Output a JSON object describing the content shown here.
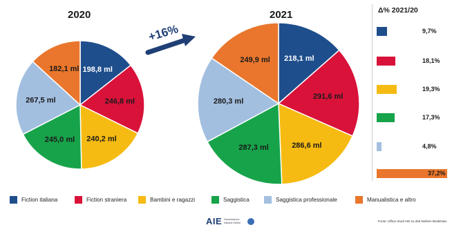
{
  "chart_data": [
    {
      "type": "pie",
      "title": "2020",
      "categories": [
        "Fiction italiana",
        "Fiction straniera",
        "Bambini e ragazzi",
        "Saggistica",
        "Saggistica professionale",
        "Manualistica e altro"
      ],
      "values": [
        198.8,
        246.8,
        240.2,
        245.0,
        267.5,
        182.1
      ],
      "labels": [
        "198,8 ml",
        "246,8 ml",
        "240,2 ml",
        "245,0 ml",
        "267,5 ml",
        "182,1 ml"
      ]
    },
    {
      "type": "pie",
      "title": "2021",
      "categories": [
        "Fiction italiana",
        "Fiction straniera",
        "Bambini e ragazzi",
        "Saggistica",
        "Saggistica professionale",
        "Manualistica e altro"
      ],
      "values": [
        218.1,
        291.6,
        286.6,
        287.3,
        280.3,
        249.9
      ],
      "labels": [
        "218,1 ml",
        "291,6 ml",
        "286,6 ml",
        "287,3 ml",
        "280,3 ml",
        "249,9 ml"
      ]
    },
    {
      "type": "bar",
      "title": "Δ% 2021/20",
      "categories": [
        "Fiction italiana",
        "Fiction straniera",
        "Bambini e ragazzi",
        "Saggistica",
        "Saggistica professionale",
        "Manualistica e altro"
      ],
      "values": [
        9.7,
        18.1,
        19.3,
        17.3,
        4.8,
        37.2
      ],
      "labels": [
        "9,7%",
        "18,1%",
        "19,3%",
        "17,3%",
        "4,8%",
        "37,2%"
      ]
    }
  ],
  "colors": [
    "#1f4e8c",
    "#d9123a",
    "#f6bb12",
    "#17a34a",
    "#a3bfe0",
    "#e9762c"
  ],
  "growth_label": "+16%",
  "legend": [
    "Fiction italiana",
    "Fiction straniera",
    "Bambini e ragazzi",
    "Saggistica",
    "Saggistica professionale",
    "Manualistica e altro"
  ],
  "footer": {
    "logo": "AIE",
    "logo_text": "Associazione Italiana Editori",
    "source": "Fonte: Ufficio studi AIE su dati Nielsen BookData"
  }
}
